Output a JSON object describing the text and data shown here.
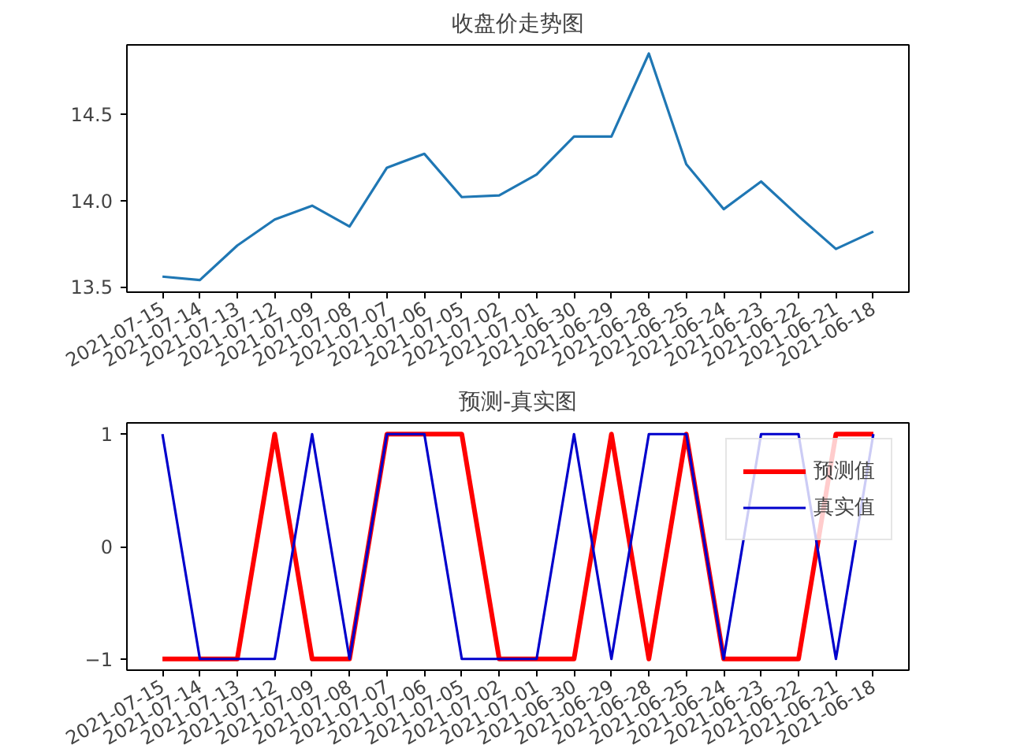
{
  "chart_data": [
    {
      "type": "line",
      "title": "收盘价走势图",
      "categories": [
        "2021-07-15",
        "2021-07-14",
        "2021-07-13",
        "2021-07-12",
        "2021-07-09",
        "2021-07-08",
        "2021-07-07",
        "2021-07-06",
        "2021-07-05",
        "2021-07-02",
        "2021-07-01",
        "2021-06-30",
        "2021-06-29",
        "2021-06-28",
        "2021-06-25",
        "2021-06-24",
        "2021-06-23",
        "2021-06-22",
        "2021-06-21",
        "2021-06-18"
      ],
      "series": [
        {
          "color": "#1f77b4",
          "values": [
            13.56,
            13.54,
            13.74,
            13.89,
            13.97,
            13.85,
            14.19,
            14.27,
            14.02,
            14.03,
            14.15,
            14.37,
            14.37,
            14.85,
            14.21,
            13.95,
            14.11,
            13.91,
            13.72,
            13.82
          ]
        }
      ],
      "ylim": [
        13.47,
        14.9
      ],
      "yticks": [
        13.5,
        {
          "value": 14.0,
          "label": "14.0"
        },
        14.5
      ],
      "grid": false,
      "legend": false
    },
    {
      "type": "line",
      "title": "预测-真实图",
      "categories": [
        "2021-07-15",
        "2021-07-14",
        "2021-07-13",
        "2021-07-12",
        "2021-07-09",
        "2021-07-08",
        "2021-07-07",
        "2021-07-06",
        "2021-07-05",
        "2021-07-02",
        "2021-07-01",
        "2021-06-30",
        "2021-06-29",
        "2021-06-28",
        "2021-06-25",
        "2021-06-24",
        "2021-06-23",
        "2021-06-22",
        "2021-06-21",
        "2021-06-18"
      ],
      "series": [
        {
          "name": "预测值",
          "color": "#ff0000",
          "values": [
            -1,
            -1,
            -1,
            1,
            -1,
            -1,
            1,
            1,
            1,
            -1,
            -1,
            -1,
            1,
            -1,
            1,
            -1,
            -1,
            -1,
            1,
            1
          ]
        },
        {
          "name": "真实值",
          "color": "#0000cc",
          "values": [
            1,
            -1,
            -1,
            -1,
            1,
            -1,
            1,
            1,
            -1,
            -1,
            -1,
            1,
            -1,
            1,
            1,
            -1,
            1,
            1,
            -1,
            1
          ]
        }
      ],
      "ylim": [
        -1.1,
        1.1
      ],
      "yticks": [
        -1,
        0,
        1
      ],
      "grid": false,
      "legend": "top right"
    }
  ]
}
